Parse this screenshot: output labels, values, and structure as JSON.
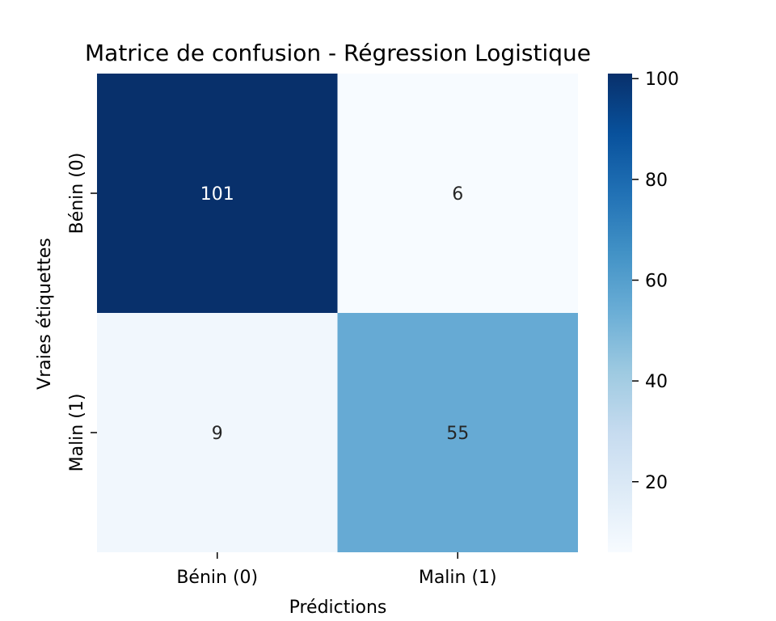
{
  "chart_data": {
    "type": "heatmap",
    "title": "Matrice de confusion - Régression Logistique",
    "xlabel": "Prédictions",
    "ylabel": "Vraies étiquettes",
    "x_categories": [
      "Bénin (0)",
      "Malin (1)"
    ],
    "y_categories": [
      "Bénin (0)",
      "Malin (1)"
    ],
    "values": [
      [
        101,
        6
      ],
      [
        9,
        55
      ]
    ],
    "colormap": "Blues",
    "colorbar": {
      "range": [
        6,
        101
      ],
      "ticks": [
        20,
        40,
        60,
        80,
        100
      ],
      "tick_labels": [
        "20",
        "40",
        "60",
        "80",
        "100"
      ]
    },
    "grid": false
  }
}
